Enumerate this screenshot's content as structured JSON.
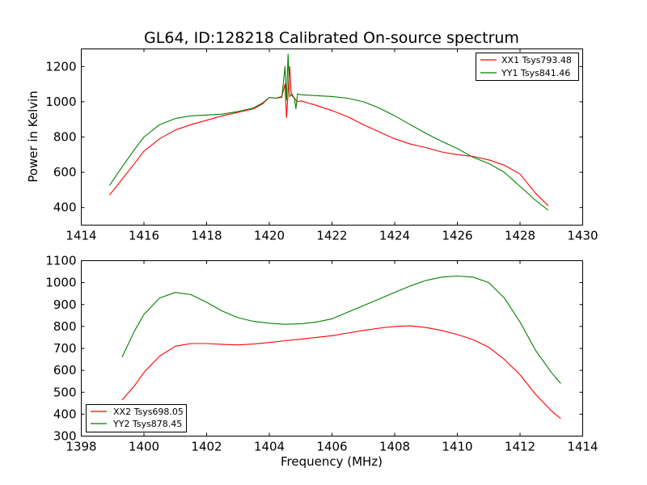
{
  "chart_data": [
    {
      "type": "line",
      "title": "GL64, ID:128218 Calibrated On-source spectrum",
      "xlabel": "",
      "ylabel": "Power in Kelvin",
      "xlim": [
        1414,
        1430
      ],
      "ylim": [
        300,
        1300
      ],
      "xticks": [
        1414,
        1416,
        1418,
        1420,
        1422,
        1424,
        1426,
        1428,
        1430
      ],
      "yticks": [
        400,
        600,
        800,
        1000,
        1200
      ],
      "legend_position": "top-right",
      "series": [
        {
          "name": "XX1 Tsys793.48",
          "color": "#ff0000",
          "x": [
            1414.9,
            1415.3,
            1415.7,
            1416.0,
            1416.5,
            1417.0,
            1417.5,
            1418.0,
            1418.5,
            1419.0,
            1419.5,
            1419.8,
            1420.0,
            1420.2,
            1420.4,
            1420.5,
            1420.55,
            1420.6,
            1420.65,
            1420.7,
            1420.8,
            1420.9,
            1421.0,
            1421.5,
            1422.0,
            1422.5,
            1423.0,
            1423.5,
            1424.0,
            1424.5,
            1425.0,
            1425.5,
            1426.0,
            1426.5,
            1427.0,
            1427.5,
            1428.0,
            1428.5,
            1428.9
          ],
          "y": [
            470,
            560,
            650,
            720,
            790,
            840,
            870,
            895,
            920,
            940,
            960,
            990,
            1025,
            1020,
            1030,
            1100,
            910,
            1050,
            1200,
            1050,
            1020,
            1000,
            1005,
            980,
            950,
            915,
            870,
            830,
            790,
            760,
            740,
            715,
            700,
            690,
            670,
            640,
            590,
            480,
            410
          ]
        },
        {
          "name": "YY1 Tsys841.46",
          "color": "#008000",
          "x": [
            1414.9,
            1415.3,
            1415.7,
            1416.0,
            1416.5,
            1417.0,
            1417.5,
            1418.0,
            1418.5,
            1419.0,
            1419.5,
            1419.8,
            1420.0,
            1420.2,
            1420.4,
            1420.5,
            1420.55,
            1420.6,
            1420.65,
            1420.7,
            1420.8,
            1420.85,
            1420.9,
            1421.0,
            1421.5,
            1422.0,
            1422.5,
            1423.0,
            1423.5,
            1424.0,
            1424.5,
            1425.0,
            1425.5,
            1426.0,
            1426.5,
            1427.0,
            1427.5,
            1428.0,
            1428.5,
            1428.9
          ],
          "y": [
            525,
            630,
            730,
            800,
            870,
            905,
            920,
            925,
            930,
            945,
            965,
            995,
            1025,
            1020,
            1025,
            1200,
            1010,
            1270,
            1030,
            1040,
            1020,
            960,
            1045,
            1040,
            1035,
            1030,
            1020,
            1000,
            965,
            920,
            870,
            820,
            775,
            735,
            685,
            650,
            600,
            520,
            440,
            385
          ]
        }
      ]
    },
    {
      "type": "line",
      "title": "",
      "xlabel": "Frequency (MHz)",
      "ylabel": "",
      "xlim": [
        1398,
        1414
      ],
      "ylim": [
        300,
        1100
      ],
      "xticks": [
        1398,
        1400,
        1402,
        1404,
        1406,
        1408,
        1410,
        1412,
        1414
      ],
      "yticks": [
        300,
        400,
        500,
        600,
        700,
        800,
        900,
        1000,
        1100
      ],
      "legend_position": "bottom-left",
      "series": [
        {
          "name": "XX2 Tsys698.05",
          "color": "#ff0000",
          "x": [
            1399.3,
            1399.7,
            1400.0,
            1400.5,
            1401.0,
            1401.5,
            1402.0,
            1402.5,
            1403.0,
            1403.5,
            1404.0,
            1404.5,
            1405.0,
            1405.5,
            1406.0,
            1406.5,
            1407.0,
            1407.5,
            1408.0,
            1408.5,
            1409.0,
            1409.5,
            1410.0,
            1410.5,
            1411.0,
            1411.5,
            1412.0,
            1412.5,
            1413.0,
            1413.3
          ],
          "y": [
            465,
            530,
            590,
            665,
            710,
            722,
            722,
            718,
            716,
            720,
            727,
            735,
            742,
            750,
            758,
            770,
            782,
            792,
            800,
            803,
            795,
            782,
            763,
            740,
            705,
            650,
            580,
            490,
            415,
            380
          ]
        },
        {
          "name": "YY2 Tsys878.45",
          "color": "#008000",
          "x": [
            1399.3,
            1399.7,
            1400.0,
            1400.5,
            1401.0,
            1401.5,
            1402.0,
            1402.5,
            1403.0,
            1403.5,
            1404.0,
            1404.5,
            1405.0,
            1405.5,
            1406.0,
            1406.5,
            1407.0,
            1407.5,
            1408.0,
            1408.5,
            1409.0,
            1409.5,
            1410.0,
            1410.5,
            1411.0,
            1411.5,
            1412.0,
            1412.5,
            1413.0,
            1413.3
          ],
          "y": [
            660,
            780,
            855,
            930,
            955,
            945,
            910,
            870,
            840,
            823,
            815,
            810,
            812,
            820,
            835,
            865,
            895,
            925,
            955,
            985,
            1010,
            1025,
            1030,
            1025,
            1000,
            930,
            820,
            690,
            590,
            540
          ]
        }
      ]
    }
  ]
}
